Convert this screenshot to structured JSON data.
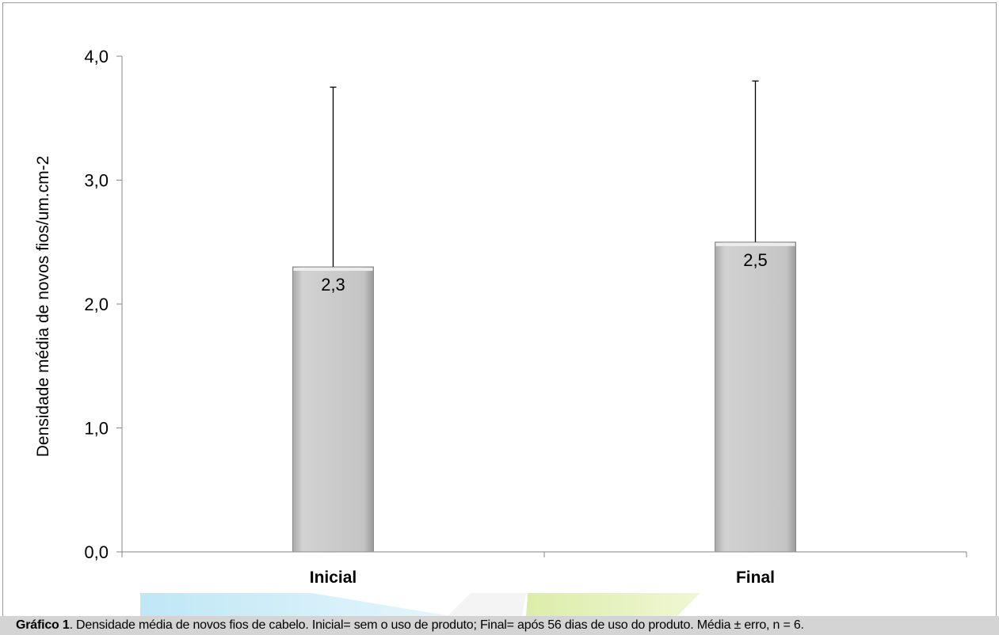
{
  "caption": {
    "label": "Gráfico 1",
    "text": ". Densidade média de novos fios de cabelo. Inicial= sem o uso de produto; Final= após 56 dias de uso do produto. Média ± erro, n = 6."
  },
  "chart_data": {
    "type": "bar",
    "title": "",
    "xlabel": "",
    "ylabel": "Densidade média de novos fios/um.cm-2",
    "categories": [
      "Inicial",
      "Final"
    ],
    "values": [
      2.3,
      2.5
    ],
    "value_labels": [
      "2,3",
      "2,5"
    ],
    "error_bars_upper": [
      3.75,
      3.8
    ],
    "ylim": [
      0,
      4
    ],
    "yticks": [
      0,
      1,
      2,
      3,
      4
    ],
    "ytick_labels": [
      "0,0",
      "1,0",
      "2,0",
      "3,0",
      "4,0"
    ],
    "grid": false,
    "legend": "none",
    "colors": {
      "bar": "#c9c9c9",
      "bar_edge": "#8c8c8c",
      "axis": "#868686",
      "error_bar": "#000000",
      "caption_bg": "#d4d4d4",
      "watermark_blue": "#c9ebf7",
      "watermark_green": "#e4f1b7"
    }
  }
}
